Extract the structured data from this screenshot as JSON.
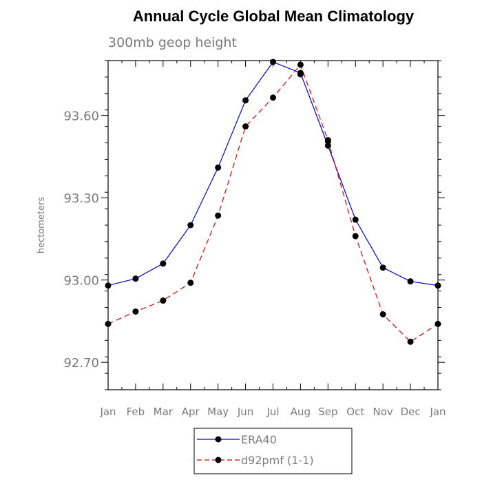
{
  "chart_data": {
    "type": "line",
    "title": "Annual Cycle Global Mean Climatology",
    "subtitle": "300mb geop height",
    "ylabel": "hectometers",
    "xlabel": "",
    "categories": [
      "Jan",
      "Feb",
      "Mar",
      "Apr",
      "May",
      "Jun",
      "Jul",
      "Aug",
      "Sep",
      "Oct",
      "Nov",
      "Dec",
      "Jan"
    ],
    "ylim": [
      92.6,
      93.8
    ],
    "yticks": [
      92.7,
      93.0,
      93.3,
      93.6
    ],
    "ytick_labels": [
      "92.70",
      "93.00",
      "93.30",
      "93.60"
    ],
    "series": [
      {
        "name": "ERA40",
        "color": "#0000cc",
        "dash": "solid",
        "values": [
          92.98,
          93.005,
          93.06,
          93.2,
          93.41,
          93.655,
          93.795,
          93.755,
          93.49,
          93.22,
          93.045,
          92.995,
          92.98
        ]
      },
      {
        "name": "d92pmf (1-1)",
        "color": "#dd0000",
        "dash": "dashed",
        "values": [
          92.84,
          92.885,
          92.925,
          92.99,
          93.235,
          93.56,
          93.665,
          93.785,
          93.51,
          93.16,
          92.875,
          92.775,
          92.84
        ]
      }
    ],
    "extra_markers": [
      {
        "category_index": 7,
        "value": 93.75
      },
      {
        "category_index": 8,
        "value": 93.505
      }
    ],
    "legend": {
      "position": "bottom-center",
      "entries": [
        "ERA40",
        "d92pmf (1-1)"
      ]
    },
    "grid": false
  }
}
